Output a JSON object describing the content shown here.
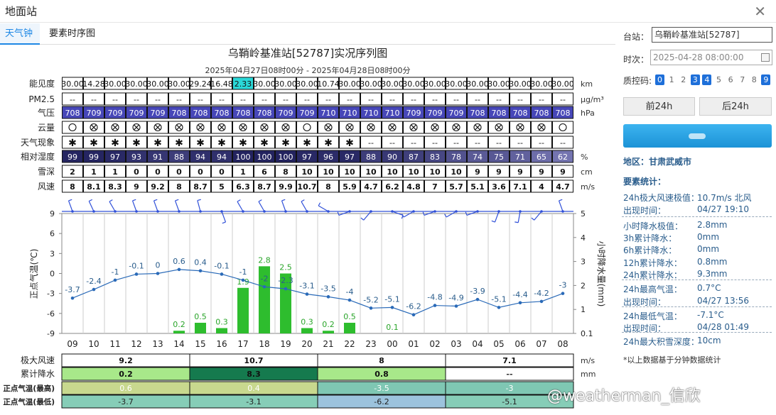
{
  "window": {
    "title": "地面站",
    "close_icon": "close-icon"
  },
  "tabs": [
    {
      "label": "天气钟",
      "active": true
    },
    {
      "label": "要素时序图",
      "active": false
    }
  ],
  "station_title": "乌鞘岭基准站[52787]实况序列图",
  "time_range": "2025年04月27日08时00分 - 2025年04月28日08时00分",
  "hours": [
    "09",
    "10",
    "11",
    "12",
    "13",
    "14",
    "15",
    "16",
    "17",
    "18",
    "19",
    "20",
    "21",
    "22",
    "23",
    "00",
    "01",
    "02",
    "03",
    "04",
    "05",
    "06",
    "07",
    "08"
  ],
  "rows": [
    {
      "label": "能见度",
      "unit": "km",
      "style": "plain",
      "values": [
        "30.00",
        "14.28",
        "30.00",
        "30.00",
        "30.00",
        "30.00",
        "29.24",
        "16.48",
        "2.33",
        "30.00",
        "30.00",
        "30.00",
        "10.74",
        "30.00",
        "30.00",
        "30.00",
        "30.00",
        "30.00",
        "30.00",
        "30.00",
        "30.00",
        "30.00",
        "30.00",
        "30.00"
      ],
      "highlight": 8
    },
    {
      "label": "PM2.5",
      "unit": "μg/m³",
      "style": "plain",
      "values": [
        "--",
        "--",
        "--",
        "--",
        "--",
        "--",
        "--",
        "--",
        "--",
        "--",
        "--",
        "--",
        "--",
        "--",
        "--",
        "--",
        "--",
        "--",
        "--",
        "--",
        "--",
        "--",
        "--",
        "--"
      ]
    },
    {
      "label": "气压",
      "unit": "hPa",
      "style": "pressure",
      "values": [
        "708",
        "709",
        "709",
        "709",
        "709",
        "708",
        "708",
        "708",
        "708",
        "708",
        "709",
        "709",
        "710",
        "710",
        "710",
        "710",
        "709",
        "709",
        "709",
        "708",
        "708",
        "708",
        "708",
        "708"
      ]
    },
    {
      "label": "云量",
      "unit": "",
      "style": "cloud",
      "values": [
        "○",
        "⊗",
        "⊗",
        "⊗",
        "⊗",
        "⊗",
        "⊗",
        "⊗",
        "⊗",
        "⊗",
        "⊗",
        "○",
        "⊗",
        "⊗",
        "⊗",
        "⊗",
        "⊗",
        "⊗",
        "⊗",
        "⊗",
        "⊗",
        "⊗",
        "⊗",
        "○"
      ]
    },
    {
      "label": "天气现象",
      "unit": "",
      "style": "phen",
      "values": [
        "✱",
        "✱",
        "✱",
        "✱",
        "✱",
        "✱",
        "✱",
        "✱",
        "✱",
        "✱",
        "✱",
        "✱",
        "✱",
        "✱",
        "--",
        "--",
        "--",
        "--",
        "--",
        "--",
        "--",
        "--",
        "--",
        "--"
      ]
    },
    {
      "label": "相对湿度",
      "unit": "%",
      "style": "humid",
      "values": [
        "99",
        "99",
        "97",
        "93",
        "91",
        "88",
        "94",
        "94",
        "100",
        "100",
        "100",
        "97",
        "96",
        "97",
        "88",
        "90",
        "87",
        "83",
        "78",
        "74",
        "75",
        "71",
        "65",
        "62"
      ]
    },
    {
      "label": "雪深",
      "unit": "cm",
      "style": "bold",
      "values": [
        "2",
        "1",
        "1",
        "0",
        "0",
        "0",
        "0",
        "0",
        "1",
        "6",
        "8",
        "10",
        "10",
        "10",
        "10",
        "10",
        "10",
        "10",
        "10",
        "9",
        "9",
        "9",
        "9",
        "9"
      ]
    },
    {
      "label": "风速",
      "unit": "m/s",
      "style": "bold",
      "values": [
        "8",
        "8.1",
        "8.3",
        "9",
        "9.2",
        "8",
        "8.7",
        "5",
        "6.3",
        "8.7",
        "9.9",
        "10.7",
        "8",
        "5.9",
        "4.7",
        "6.2",
        "4.8",
        "7",
        "5.7",
        "5.1",
        "3.6",
        "7.1",
        "4",
        "4.7"
      ]
    }
  ],
  "chart_data": {
    "type": "line",
    "x": [
      "09",
      "10",
      "11",
      "12",
      "13",
      "14",
      "15",
      "16",
      "17",
      "18",
      "19",
      "20",
      "21",
      "22",
      "23",
      "00",
      "01",
      "02",
      "03",
      "04",
      "05",
      "06",
      "07",
      "08"
    ],
    "series": [
      {
        "name": "正点气温(℃)",
        "type": "line",
        "axis": "left",
        "color": "#2a6ab8",
        "values": [
          -3.7,
          -2.4,
          -1,
          -0.1,
          0,
          0.6,
          0.4,
          -0.1,
          -1,
          -2,
          -2.3,
          -3.1,
          -3.5,
          -4,
          -5.2,
          -5.1,
          -6.2,
          -4.8,
          -4.9,
          -3.9,
          -5.1,
          -4.4,
          -4.2,
          -3
        ]
      },
      {
        "name": "小时降水量(mm)",
        "type": "bar",
        "axis": "right",
        "color": "#22bb22",
        "values": [
          0,
          0,
          0,
          0,
          0,
          0.2,
          0.5,
          0.3,
          1.9,
          2.8,
          2.5,
          0.3,
          0.2,
          0.5,
          0,
          0.1,
          0,
          0,
          0,
          0,
          0,
          0,
          0,
          0
        ]
      }
    ],
    "ylabel_left": "正点气温(℃)",
    "ylabel_right": "小时降水量(mm)",
    "ylim_left": [
      -9,
      9
    ],
    "yticks_left": [
      9,
      6,
      3,
      0,
      -3,
      -6,
      -9
    ],
    "ylim_right": [
      0.1,
      5
    ],
    "yticks_right": [
      "5",
      "4",
      "3",
      "2",
      "1",
      "0.1"
    ],
    "wind_dirs": [
      340,
      335,
      330,
      340,
      340,
      340,
      345,
      160,
      330,
      330,
      340,
      330,
      300,
      250,
      220,
      110,
      240,
      250,
      240,
      250,
      200,
      190,
      220,
      340
    ],
    "grid": true
  },
  "summary": {
    "groups": [
      "9.2",
      "10.7",
      "8",
      "7.1"
    ],
    "rows": [
      {
        "label": "极大风速",
        "unit": "m/s",
        "values": [
          "9.2",
          "10.7",
          "8",
          "7.1"
        ],
        "colors": [
          "#ffffff",
          "#ffffff",
          "#ffffff",
          "#ffffff"
        ],
        "bold": true
      },
      {
        "label": "累计降水",
        "unit": "mm",
        "values": [
          "0.2",
          "8.3",
          "0.8",
          "--"
        ],
        "colors": [
          "#a8e88a",
          "#157a4e",
          "#a8e88a",
          "#ffffff"
        ],
        "textcolors": [
          "#111",
          "#111",
          "#111",
          "#333"
        ],
        "bold": true
      },
      {
        "label": "正点气温(最高)",
        "unit": "",
        "values": [
          "0.6",
          "0.4",
          "-3.5",
          "-3"
        ],
        "colors": [
          "#c8d88e",
          "#c8d88e",
          "#7fc7b3",
          "#7fc7b3"
        ],
        "textcolors": [
          "#fff",
          "#fff",
          "#fff",
          "#fff"
        ]
      },
      {
        "label": "正点气温(最低)",
        "unit": "",
        "values": [
          "-3.7",
          "-3.1",
          "-6.2",
          "-5.1"
        ],
        "colors": [
          "#86cdb7",
          "#86cdb7",
          "#9cc3dd",
          "#86cdb7"
        ],
        "textcolors": [
          "#222",
          "#222",
          "#222",
          "#222"
        ]
      }
    ]
  },
  "side": {
    "station_label": "台站：",
    "station_value": "乌鞘岭基准站[52787]",
    "time_label": "时次：",
    "time_value": "2025-04-28 08:00:00",
    "calendar_icon": "calendar-icon",
    "qc_label": "质控码:",
    "qc_codes": [
      {
        "v": "0",
        "on": true
      },
      {
        "v": "1",
        "on": false
      },
      {
        "v": "2",
        "on": false
      },
      {
        "v": "3",
        "on": true
      },
      {
        "v": "4",
        "on": true
      },
      {
        "v": "5",
        "on": false
      },
      {
        "v": "6",
        "on": false
      },
      {
        "v": "7",
        "on": false
      },
      {
        "v": "8",
        "on": false
      },
      {
        "v": "9",
        "on": true
      }
    ],
    "prev_btn": "前24h",
    "next_btn": "后24h",
    "region": "地区：甘肃武威市",
    "stats_title": "要素统计：",
    "stats": [
      {
        "k": "24h极大风速极值：",
        "v": "10.7m/s 北风"
      },
      {
        "k": "出现时间：",
        "v": "04/27 19:10"
      },
      {
        "k": "小时降水极值：",
        "v": "2.8mm"
      },
      {
        "k": "3h累计降水：",
        "v": "0mm"
      },
      {
        "k": "6h累计降水：",
        "v": "0mm"
      },
      {
        "k": "12h累计降水：",
        "v": "0.8mm"
      },
      {
        "k": "24h累计降水：",
        "v": "9.3mm"
      },
      {
        "k": "24h最高气温：",
        "v": "0.7°C"
      },
      {
        "k": "出现时间：",
        "v": "04/27 13:56"
      },
      {
        "k": "24h最低气温：",
        "v": "-7.1°C"
      },
      {
        "k": "出现时间：",
        "v": "04/28 01:49"
      },
      {
        "k": "24h最大积雪深度：",
        "v": "10cm"
      }
    ],
    "note": "*以上数据基于分钟数据统计"
  },
  "watermark": "@weatherman_信欣",
  "colors": {
    "accent": "#1e88e5",
    "pressure": "#4747b8",
    "humid_dark": "#3a3a8a",
    "temp_line": "#2a6ab8",
    "precip": "#22bb22",
    "highlight": "#2ad8d8"
  }
}
